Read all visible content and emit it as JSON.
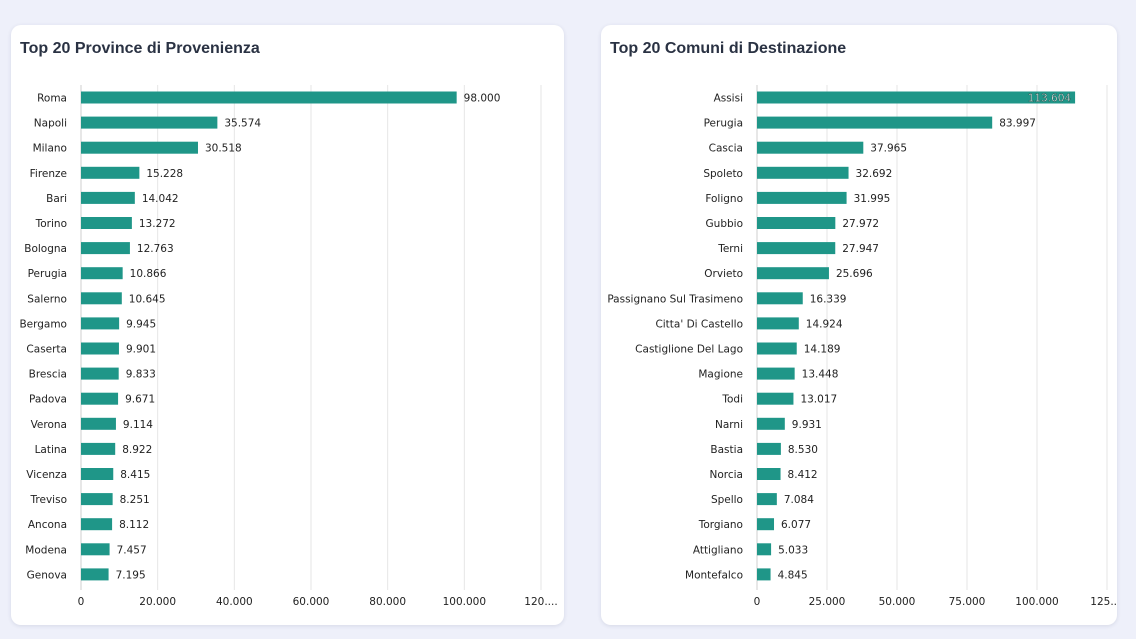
{
  "colors": {
    "bar": "#1f9688",
    "grid": "#e6e6e6",
    "text": "#222222",
    "title": "#2a3243",
    "background": "#eef0fa"
  },
  "chart_data": [
    {
      "type": "bar",
      "orientation": "horizontal",
      "title": "Top 20 Province di Provenienza",
      "categories": [
        "Roma",
        "Napoli",
        "Milano",
        "Firenze",
        "Bari",
        "Torino",
        "Bologna",
        "Perugia",
        "Salerno",
        "Bergamo",
        "Caserta",
        "Brescia",
        "Padova",
        "Verona",
        "Latina",
        "Vicenza",
        "Treviso",
        "Ancona",
        "Modena",
        "Genova"
      ],
      "values": [
        98000,
        35574,
        30518,
        15228,
        14042,
        13272,
        12763,
        10866,
        10645,
        9945,
        9901,
        9833,
        9671,
        9114,
        8922,
        8415,
        8251,
        8112,
        7457,
        7195
      ],
      "value_labels": [
        "98.000",
        "35.574",
        "30.518",
        "15.228",
        "14.042",
        "13.272",
        "12.763",
        "10.866",
        "10.645",
        "9.945",
        "9.901",
        "9.833",
        "9.671",
        "9.114",
        "8.922",
        "8.415",
        "8.251",
        "8.112",
        "7.457",
        "7.195"
      ],
      "xlim": [
        0,
        120000
      ],
      "ticks": [
        0,
        20000,
        40000,
        60000,
        80000,
        100000,
        120000
      ],
      "tick_labels": [
        "0",
        "20.000",
        "40.000",
        "60.000",
        "80.000",
        "100.000",
        "120...."
      ],
      "xlabel": "",
      "ylabel": "",
      "grid": true
    },
    {
      "type": "bar",
      "orientation": "horizontal",
      "title": "Top 20 Comuni di Destinazione",
      "categories": [
        "Assisi",
        "Perugia",
        "Cascia",
        "Spoleto",
        "Foligno",
        "Gubbio",
        "Terni",
        "Orvieto",
        "Passignano Sul Trasimeno",
        "Citta' Di Castello",
        "Castiglione Del Lago",
        "Magione",
        "Todi",
        "Narni",
        "Bastia",
        "Norcia",
        "Spello",
        "Torgiano",
        "Attigliano",
        "Montefalco"
      ],
      "values": [
        113604,
        83997,
        37965,
        32692,
        31995,
        27972,
        27947,
        25696,
        16339,
        14924,
        14189,
        13448,
        13017,
        9931,
        8530,
        8412,
        7084,
        6077,
        5033,
        4845
      ],
      "value_labels": [
        "113.604",
        "83.997",
        "37.965",
        "32.692",
        "31.995",
        "27.972",
        "27.947",
        "25.696",
        "16.339",
        "14.924",
        "14.189",
        "13.448",
        "13.017",
        "9.931",
        "8.530",
        "8.412",
        "7.084",
        "6.077",
        "5.033",
        "4.845"
      ],
      "xlim": [
        0,
        125000
      ],
      "ticks": [
        0,
        25000,
        50000,
        75000,
        100000,
        125000
      ],
      "tick_labels": [
        "0",
        "25.000",
        "50.000",
        "75.000",
        "100.000",
        "125...."
      ],
      "xlabel": "",
      "ylabel": "",
      "grid": true
    }
  ]
}
